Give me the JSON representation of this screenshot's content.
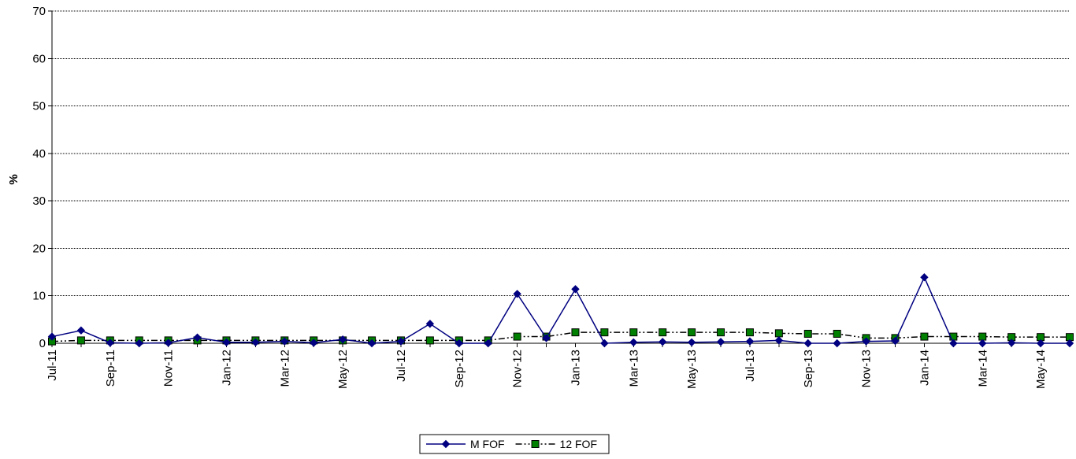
{
  "chart_data": {
    "type": "line",
    "title": "",
    "xlabel": "",
    "ylabel": "%",
    "ylim": [
      0,
      70
    ],
    "yticks": [
      0,
      10,
      20,
      30,
      40,
      50,
      60,
      70
    ],
    "grid": "horizontal",
    "legend_position": "bottom-center",
    "categories": [
      "Jul-11",
      "Aug-11",
      "Sep-11",
      "Oct-11",
      "Nov-11",
      "Dec-11",
      "Jan-12",
      "Feb-12",
      "Mar-12",
      "Apr-12",
      "May-12",
      "Jun-12",
      "Jul-12",
      "Aug-12",
      "Sep-12",
      "Oct-12",
      "Nov-12",
      "Dec-12",
      "Jan-13",
      "Feb-13",
      "Mar-13",
      "Apr-13",
      "May-13",
      "Jun-13",
      "Jul-13",
      "Aug-13",
      "Sep-13",
      "Oct-13",
      "Nov-13",
      "Dec-13",
      "Jan-14",
      "Feb-14",
      "Mar-14",
      "Apr-14",
      "May-14",
      "Jun-14"
    ],
    "tick_labels": [
      "Jul-11",
      "Sep-11",
      "Nov-11",
      "Jan-12",
      "Mar-12",
      "May-12",
      "Jul-12",
      "Sep-12",
      "Nov-12",
      "Jan-13",
      "Mar-13",
      "May-13",
      "Jul-13",
      "Sep-13",
      "Nov-13",
      "Jan-14",
      "Mar-14",
      "May-14"
    ],
    "series": [
      {
        "name": "M FOF",
        "color": "#000080",
        "line_style": "solid",
        "marker": "diamond",
        "values": [
          1.4,
          2.7,
          0.1,
          0.0,
          0.1,
          1.2,
          0.2,
          0.2,
          0.4,
          0.1,
          0.8,
          0.0,
          0.4,
          4.1,
          0.0,
          0.0,
          10.4,
          1.1,
          11.4,
          0.0,
          0.2,
          0.3,
          0.2,
          0.3,
          0.4,
          0.6,
          0.0,
          0.0,
          0.4,
          0.5,
          13.9,
          0.0,
          0.0,
          0.1,
          0.0,
          0.0
        ]
      },
      {
        "name": "12 FOF",
        "color": "#008000",
        "line_style": "dash-dot-dot",
        "marker": "square",
        "values": [
          0.4,
          0.6,
          0.6,
          0.6,
          0.6,
          0.6,
          0.6,
          0.6,
          0.6,
          0.6,
          0.6,
          0.6,
          0.6,
          0.6,
          0.6,
          0.6,
          1.4,
          1.4,
          2.3,
          2.3,
          2.3,
          2.3,
          2.3,
          2.3,
          2.3,
          2.1,
          2.0,
          2.0,
          1.1,
          1.1,
          1.4,
          1.4,
          1.4,
          1.3,
          1.3,
          1.3
        ]
      }
    ]
  }
}
